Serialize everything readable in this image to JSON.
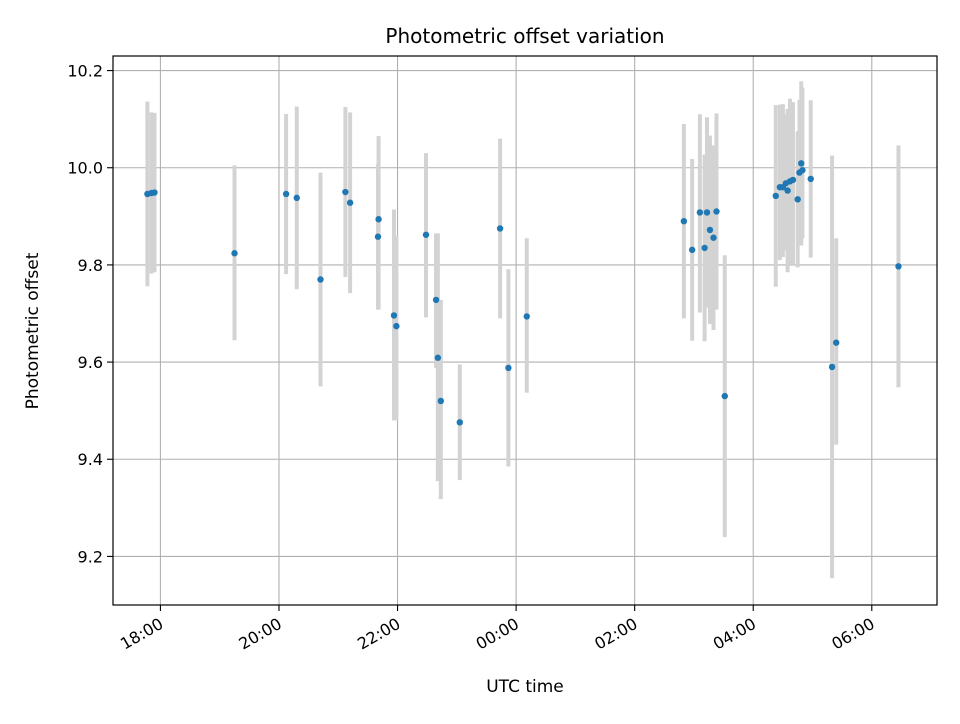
{
  "chart_data": {
    "type": "scatter",
    "title": "Photometric offset variation",
    "xlabel": "UTC time",
    "ylabel": "Photometric offset",
    "x_axis_unit": "hours relative to 00:00 UTC",
    "xlim": [
      -6.8,
      7.1
    ],
    "ylim": [
      9.1,
      10.23
    ],
    "xticks": [
      {
        "value": -6,
        "label": "18:00"
      },
      {
        "value": -4,
        "label": "20:00"
      },
      {
        "value": -2,
        "label": "22:00"
      },
      {
        "value": 0,
        "label": "00:00"
      },
      {
        "value": 2,
        "label": "02:00"
      },
      {
        "value": 4,
        "label": "04:00"
      },
      {
        "value": 6,
        "label": "06:00"
      }
    ],
    "yticks": [
      {
        "value": 9.2,
        "label": "9.2"
      },
      {
        "value": 9.4,
        "label": "9.4"
      },
      {
        "value": 9.6,
        "label": "9.6"
      },
      {
        "value": 9.8,
        "label": "9.8"
      },
      {
        "value": 10.0,
        "label": "10.0"
      },
      {
        "value": 10.2,
        "label": "10.2"
      }
    ],
    "grid": true,
    "marker_color": "#1f77b4",
    "errorbar_color": "#d3d3d3",
    "points": [
      {
        "x": -6.22,
        "y": 9.946,
        "low": 9.756,
        "high": 10.136
      },
      {
        "x": -6.15,
        "y": 9.948,
        "low": 9.782,
        "high": 10.114
      },
      {
        "x": -6.1,
        "y": 9.949,
        "low": 9.785,
        "high": 10.113
      },
      {
        "x": -4.75,
        "y": 9.824,
        "low": 9.645,
        "high": 10.005
      },
      {
        "x": -3.88,
        "y": 9.946,
        "low": 9.781,
        "high": 10.111
      },
      {
        "x": -3.7,
        "y": 9.938,
        "low": 9.75,
        "high": 10.126
      },
      {
        "x": -3.3,
        "y": 9.77,
        "low": 9.55,
        "high": 9.99
      },
      {
        "x": -2.88,
        "y": 9.95,
        "low": 9.775,
        "high": 10.125
      },
      {
        "x": -2.8,
        "y": 9.928,
        "low": 9.742,
        "high": 10.114
      },
      {
        "x": -2.32,
        "y": 9.894,
        "low": 9.708,
        "high": 10.065
      },
      {
        "x": -2.33,
        "y": 9.858,
        "low": 9.708,
        "high": 10.008
      },
      {
        "x": -2.06,
        "y": 9.696,
        "low": 9.48,
        "high": 9.914
      },
      {
        "x": -2.02,
        "y": 9.674,
        "low": 9.48,
        "high": 9.86
      },
      {
        "x": -1.52,
        "y": 9.862,
        "low": 9.692,
        "high": 10.03
      },
      {
        "x": -1.35,
        "y": 9.728,
        "low": 9.588,
        "high": 9.865
      },
      {
        "x": -1.32,
        "y": 9.609,
        "low": 9.355,
        "high": 9.865
      },
      {
        "x": -1.27,
        "y": 9.52,
        "low": 9.318,
        "high": 9.728
      },
      {
        "x": -0.95,
        "y": 9.476,
        "low": 9.357,
        "high": 9.595
      },
      {
        "x": -0.27,
        "y": 9.875,
        "low": 9.69,
        "high": 10.06
      },
      {
        "x": -0.13,
        "y": 9.588,
        "low": 9.385,
        "high": 9.791
      },
      {
        "x": 0.18,
        "y": 9.694,
        "low": 9.537,
        "high": 9.855
      },
      {
        "x": 2.83,
        "y": 9.89,
        "low": 9.69,
        "high": 10.09
      },
      {
        "x": 2.97,
        "y": 9.831,
        "low": 9.644,
        "high": 10.018
      },
      {
        "x": 3.1,
        "y": 9.908,
        "low": 9.702,
        "high": 10.11
      },
      {
        "x": 3.18,
        "y": 9.835,
        "low": 9.643,
        "high": 10.027
      },
      {
        "x": 3.22,
        "y": 9.908,
        "low": 9.712,
        "high": 10.104
      },
      {
        "x": 3.27,
        "y": 9.872,
        "low": 9.678,
        "high": 10.066
      },
      {
        "x": 3.33,
        "y": 9.856,
        "low": 9.666,
        "high": 10.046
      },
      {
        "x": 3.38,
        "y": 9.91,
        "low": 9.708,
        "high": 10.112
      },
      {
        "x": 3.52,
        "y": 9.53,
        "low": 9.24,
        "high": 9.82
      },
      {
        "x": 4.38,
        "y": 9.942,
        "low": 9.755,
        "high": 10.129
      },
      {
        "x": 4.45,
        "y": 9.96,
        "low": 9.81,
        "high": 10.13
      },
      {
        "x": 4.5,
        "y": 9.96,
        "low": 9.816,
        "high": 10.131
      },
      {
        "x": 4.55,
        "y": 9.968,
        "low": 9.83,
        "high": 10.11
      },
      {
        "x": 4.58,
        "y": 9.953,
        "low": 9.785,
        "high": 10.121
      },
      {
        "x": 4.62,
        "y": 9.972,
        "low": 9.802,
        "high": 10.142
      },
      {
        "x": 4.67,
        "y": 9.975,
        "low": 9.8,
        "high": 10.135
      },
      {
        "x": 4.75,
        "y": 9.935,
        "low": 9.795,
        "high": 10.075
      },
      {
        "x": 4.78,
        "y": 9.99,
        "low": 9.84,
        "high": 10.14
      },
      {
        "x": 4.81,
        "y": 10.009,
        "low": 9.84,
        "high": 10.178
      },
      {
        "x": 4.83,
        "y": 9.995,
        "low": 9.855,
        "high": 10.165
      },
      {
        "x": 4.97,
        "y": 9.977,
        "low": 9.815,
        "high": 10.139
      },
      {
        "x": 5.33,
        "y": 9.59,
        "low": 9.155,
        "high": 10.025
      },
      {
        "x": 5.4,
        "y": 9.64,
        "low": 9.43,
        "high": 9.855
      },
      {
        "x": 6.45,
        "y": 9.797,
        "low": 9.548,
        "high": 10.046
      }
    ]
  }
}
